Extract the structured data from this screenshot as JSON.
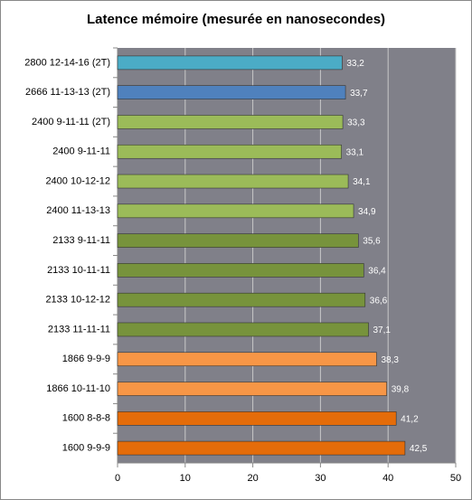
{
  "chart_data": {
    "type": "bar",
    "orientation": "horizontal",
    "title": "Latence mémoire (mesurée en nanosecondes)",
    "categories": [
      "2800 12-14-16 (2T)",
      "2666 11-13-13 (2T)",
      "2400 9-11-11 (2T)",
      "2400 9-11-11",
      "2400 10-12-12",
      "2400 11-13-13",
      "2133 9-11-11",
      "2133 10-11-11",
      "2133 10-12-12",
      "2133 11-11-11",
      "1866 9-9-9",
      "1866 10-11-10",
      "1600 8-8-8",
      "1600 9-9-9"
    ],
    "values": [
      33.2,
      33.7,
      33.3,
      33.1,
      34.1,
      34.9,
      35.6,
      36.4,
      36.6,
      37.1,
      38.3,
      39.8,
      41.2,
      42.5
    ],
    "value_labels": [
      "33,2",
      "33,7",
      "33,3",
      "33,1",
      "34,1",
      "34,9",
      "35,6",
      "36,4",
      "36,6",
      "37,1",
      "38,3",
      "39,8",
      "41,2",
      "42,5"
    ],
    "colors": [
      "#4bacc6",
      "#4f81bd",
      "#9bbb59",
      "#9bbb59",
      "#9bbb59",
      "#9bbb59",
      "#77933c",
      "#77933c",
      "#77933c",
      "#77933c",
      "#f79646",
      "#f79646",
      "#e46c0a",
      "#e46c0a"
    ],
    "xlim": [
      0,
      50
    ],
    "xticks": [
      0,
      10,
      20,
      30,
      40,
      50
    ],
    "grid": true
  }
}
